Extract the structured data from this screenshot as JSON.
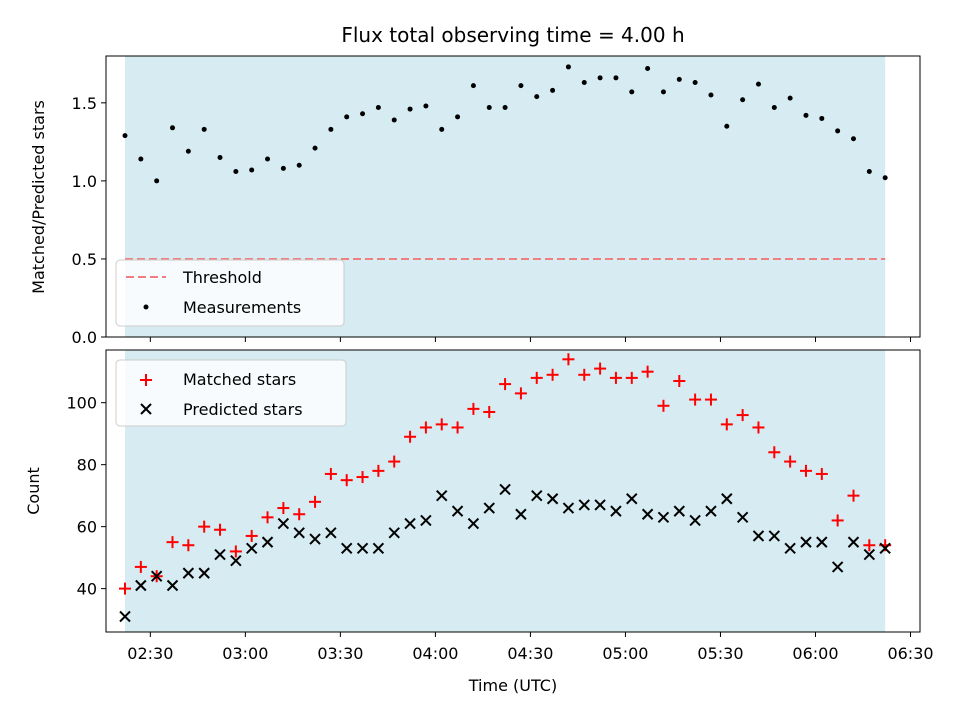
{
  "title": "Flux total observing time = 4.00 h",
  "colors": {
    "shade": "#add8e6",
    "threshold": "#f08080",
    "matched": "#ff0000",
    "predicted": "#000000",
    "measurements": "#000000"
  },
  "chart_data": [
    {
      "type": "scatter",
      "panel": "top",
      "ylabel": "Matched/Predicted stars",
      "ylim": [
        0,
        1.8
      ],
      "yticks": [
        0.0,
        0.5,
        1.0,
        1.5
      ],
      "ytick_labels": [
        "0.0",
        "0.5",
        "1.0",
        "1.5"
      ],
      "xlim": [
        "02:16",
        "06:33"
      ],
      "shaded_span": [
        "02:22",
        "06:22"
      ],
      "threshold": 0.5,
      "legend": {
        "position": "lower-left",
        "entries": [
          "Threshold",
          "Measurements"
        ]
      },
      "series": [
        {
          "name": "Measurements",
          "marker": "dot",
          "x": [
            "02:22",
            "02:27",
            "02:32",
            "02:37",
            "02:42",
            "02:47",
            "02:52",
            "02:57",
            "03:02",
            "03:07",
            "03:12",
            "03:17",
            "03:22",
            "03:27",
            "03:32",
            "03:37",
            "03:42",
            "03:47",
            "03:52",
            "03:57",
            "04:02",
            "04:07",
            "04:12",
            "04:17",
            "04:22",
            "04:27",
            "04:32",
            "04:37",
            "04:42",
            "04:47",
            "04:52",
            "04:57",
            "05:02",
            "05:07",
            "05:12",
            "05:17",
            "05:22",
            "05:27",
            "05:32",
            "05:37",
            "05:42",
            "05:47",
            "05:52",
            "05:57",
            "06:02",
            "06:07",
            "06:12",
            "06:17",
            "06:22"
          ],
          "y": [
            1.29,
            1.14,
            1.0,
            1.34,
            1.19,
            1.33,
            1.15,
            1.06,
            1.07,
            1.14,
            1.08,
            1.1,
            1.21,
            1.33,
            1.41,
            1.43,
            1.47,
            1.39,
            1.46,
            1.48,
            1.33,
            1.41,
            1.61,
            1.47,
            1.47,
            1.61,
            1.54,
            1.58,
            1.73,
            1.63,
            1.66,
            1.66,
            1.57,
            1.72,
            1.57,
            1.65,
            1.63,
            1.55,
            1.35,
            1.52,
            1.62,
            1.47,
            1.53,
            1.42,
            1.4,
            1.32,
            1.27,
            1.06,
            1.02
          ]
        }
      ]
    },
    {
      "type": "scatter",
      "panel": "bottom",
      "xlabel": "Time (UTC)",
      "ylabel": "Count",
      "ylim": [
        26,
        117
      ],
      "yticks": [
        40,
        60,
        80,
        100
      ],
      "ytick_labels": [
        "40",
        "60",
        "80",
        "100"
      ],
      "xlim": [
        "02:16",
        "06:33"
      ],
      "xticks": [
        "02:30",
        "03:00",
        "03:30",
        "04:00",
        "04:30",
        "05:00",
        "05:30",
        "06:00",
        "06:30"
      ],
      "shaded_span": [
        "02:22",
        "06:22"
      ],
      "legend": {
        "position": "upper-left",
        "entries": [
          "Matched stars",
          "Predicted stars"
        ]
      },
      "x": [
        "02:22",
        "02:27",
        "02:32",
        "02:37",
        "02:42",
        "02:47",
        "02:52",
        "02:57",
        "03:02",
        "03:07",
        "03:12",
        "03:17",
        "03:22",
        "03:27",
        "03:32",
        "03:37",
        "03:42",
        "03:47",
        "03:52",
        "03:57",
        "04:02",
        "04:07",
        "04:12",
        "04:17",
        "04:22",
        "04:27",
        "04:32",
        "04:37",
        "04:42",
        "04:47",
        "04:52",
        "04:57",
        "05:02",
        "05:07",
        "05:12",
        "05:17",
        "05:22",
        "05:27",
        "05:32",
        "05:37",
        "05:42",
        "05:47",
        "05:52",
        "05:57",
        "06:02",
        "06:07",
        "06:12",
        "06:17",
        "06:22"
      ],
      "series": [
        {
          "name": "Matched stars",
          "marker": "plus",
          "values": [
            40,
            47,
            44,
            55,
            54,
            60,
            59,
            52,
            57,
            63,
            66,
            64,
            68,
            77,
            75,
            76,
            78,
            81,
            89,
            92,
            93,
            92,
            98,
            97,
            106,
            103,
            108,
            109,
            114,
            109,
            111,
            108,
            108,
            110,
            99,
            107,
            101,
            101,
            93,
            96,
            92,
            84,
            81,
            78,
            77,
            62,
            70,
            54,
            54
          ]
        },
        {
          "name": "Predicted stars",
          "marker": "x",
          "values": [
            31,
            41,
            44,
            41,
            45,
            45,
            51,
            49,
            53,
            55,
            61,
            58,
            56,
            58,
            53,
            53,
            53,
            58,
            61,
            62,
            70,
            65,
            61,
            66,
            72,
            64,
            70,
            69,
            66,
            67,
            67,
            65,
            69,
            64,
            63,
            65,
            62,
            65,
            69,
            63,
            57,
            57,
            53,
            55,
            55,
            47,
            55,
            51,
            53
          ]
        }
      ]
    }
  ]
}
